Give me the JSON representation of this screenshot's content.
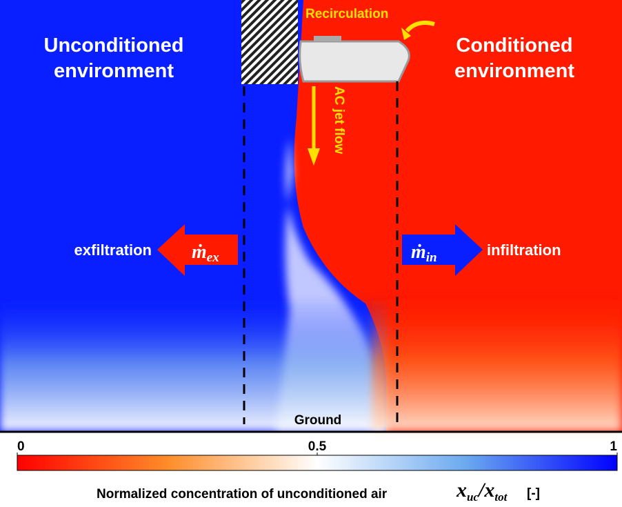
{
  "labels": {
    "recirculation": "Recirculation",
    "left_title": [
      "Unconditioned",
      "environment"
    ],
    "right_title": [
      "Conditioned",
      "environment"
    ],
    "jet": "AC jet flow",
    "exfiltration": "exfiltration",
    "infiltration": "infiltration",
    "m_ex": {
      "base": "ṁ",
      "sub": "ex"
    },
    "m_in": {
      "base": "ṁ",
      "sub": "in"
    },
    "ground": "Ground"
  },
  "colorbar": {
    "range": [
      0,
      1
    ],
    "ticks": [
      0,
      0.5,
      1
    ],
    "colors": [
      "#ff0000",
      "#ff8c28",
      "#ffffff",
      "#6aa8f0",
      "#0000ff"
    ],
    "caption": "Normalized concentration of unconditioned air",
    "symbol": {
      "num": "x",
      "num_sub": "uc",
      "den": "x",
      "den_sub": "tot"
    },
    "unit": "[-]"
  }
}
